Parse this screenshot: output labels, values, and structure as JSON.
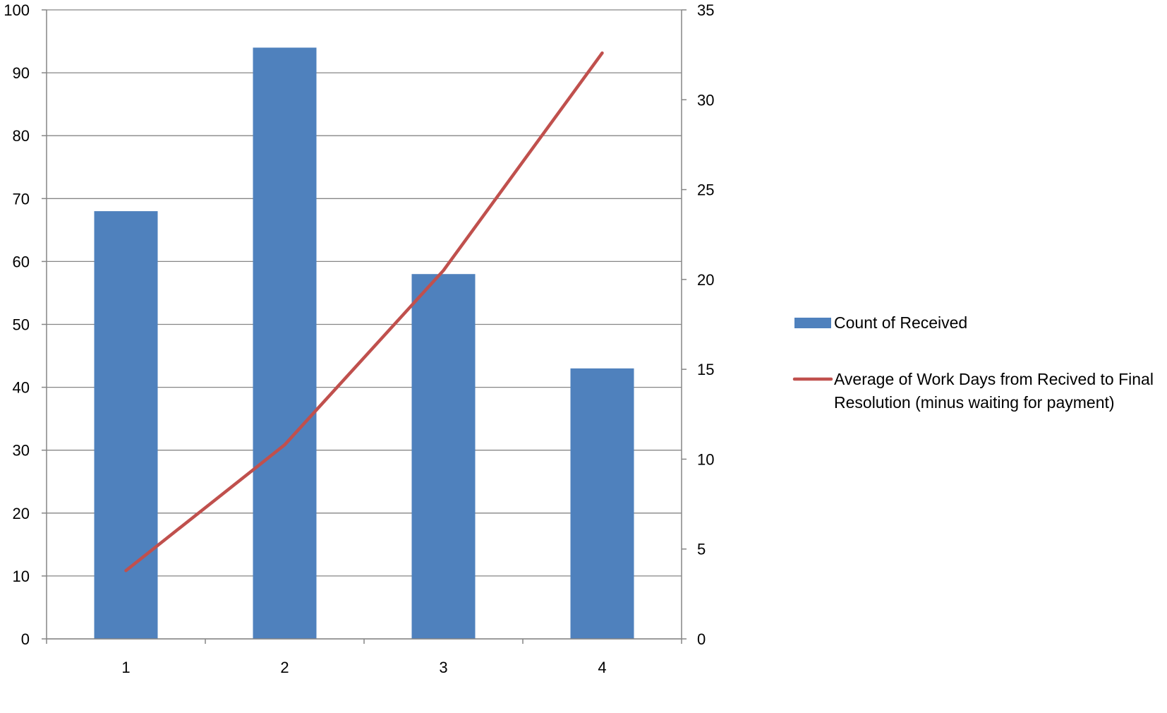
{
  "chart_data": {
    "type": "bar",
    "categories": [
      "1",
      "2",
      "3",
      "4"
    ],
    "series": [
      {
        "name": "Count of Received",
        "type": "bar",
        "axis": "left",
        "color": "#4F81BD",
        "values": [
          68,
          94,
          58,
          43
        ]
      },
      {
        "name": "Average of Work Days from Recived to Final Resolution (minus waiting for payment)",
        "name_lines": [
          "Average of Work Days from Recived to Final",
          "Resolution (minus waiting for payment)"
        ],
        "type": "line",
        "axis": "right",
        "color": "#C0504D",
        "values": [
          3.8,
          10.8,
          20.5,
          32.6
        ]
      }
    ],
    "y_left": {
      "ylim": [
        0,
        100
      ],
      "ticks": [
        "0",
        "10",
        "20",
        "30",
        "40",
        "50",
        "60",
        "70",
        "80",
        "90",
        "100"
      ]
    },
    "y_right": {
      "ylim": [
        0,
        35
      ],
      "ticks": [
        "0",
        "5",
        "10",
        "15",
        "20",
        "25",
        "30",
        "35"
      ]
    },
    "title": "",
    "xlabel": "",
    "ylabel": "",
    "grid": true,
    "legend_position": "right"
  }
}
